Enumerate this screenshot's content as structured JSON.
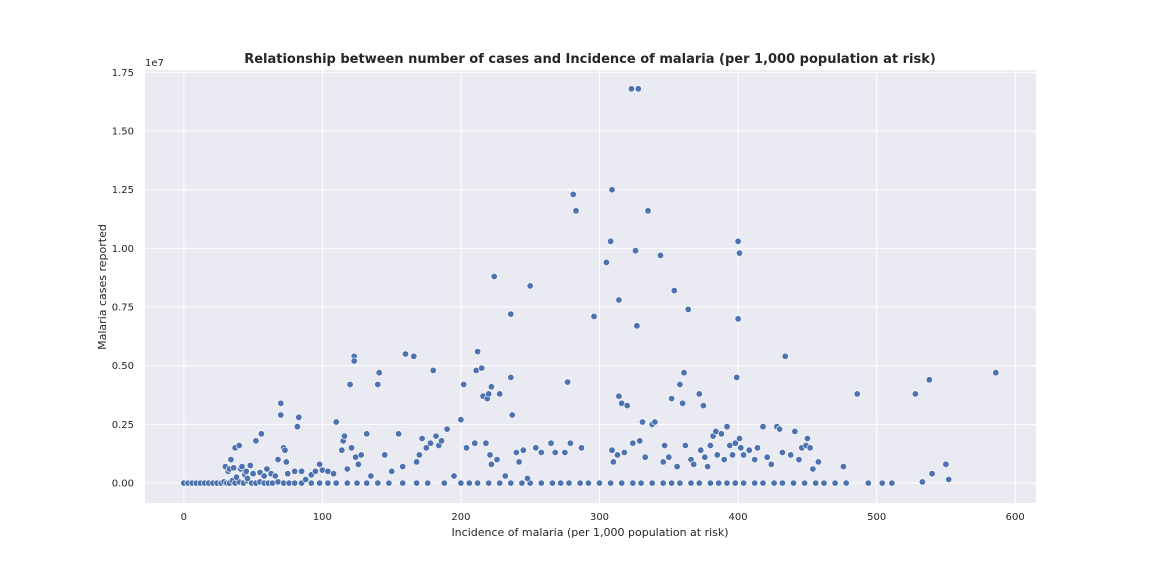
{
  "chart_data": {
    "type": "scatter",
    "title": "Relationship between number of cases and Incidence of malaria (per 1,000 population at risk)",
    "xlabel": "Incidence of malaria (per 1,000 population at risk)",
    "ylabel": "Malaria cases reported",
    "y_offset_text": "1e7",
    "xlim": [
      -28,
      615
    ],
    "ylim": [
      -850000,
      17600000
    ],
    "xticks": [
      0,
      100,
      200,
      300,
      400,
      500,
      600
    ],
    "xtick_labels": [
      "0",
      "100",
      "200",
      "300",
      "400",
      "500",
      "600"
    ],
    "yticks": [
      0,
      2500000,
      5000000,
      7500000,
      10000000,
      12500000,
      15000000,
      17500000
    ],
    "ytick_labels": [
      "0.00",
      "0.25",
      "0.50",
      "0.75",
      "1.00",
      "1.25",
      "1.50",
      "1.75"
    ],
    "grid": true,
    "style": "seaborn-darkgrid",
    "colors": {
      "background": "#eaeaf2",
      "grid": "#ffffff",
      "point": "#4c72b0",
      "point_edge": "#ffffff"
    },
    "points": [
      [
        0,
        0
      ],
      [
        3,
        0
      ],
      [
        6,
        0
      ],
      [
        9,
        0
      ],
      [
        12,
        0
      ],
      [
        15,
        0
      ],
      [
        18,
        0
      ],
      [
        21,
        0
      ],
      [
        24,
        0
      ],
      [
        27,
        0
      ],
      [
        29,
        50000
      ],
      [
        31,
        0
      ],
      [
        33,
        0
      ],
      [
        35,
        100000
      ],
      [
        37,
        0
      ],
      [
        40,
        50000
      ],
      [
        43,
        0
      ],
      [
        46,
        100000
      ],
      [
        49,
        0
      ],
      [
        52,
        0
      ],
      [
        55,
        50000
      ],
      [
        58,
        0
      ],
      [
        61,
        0
      ],
      [
        64,
        0
      ],
      [
        68,
        50000
      ],
      [
        72,
        0
      ],
      [
        76,
        0
      ],
      [
        80,
        0
      ],
      [
        85,
        0
      ],
      [
        92,
        0
      ],
      [
        98,
        0
      ],
      [
        104,
        0
      ],
      [
        110,
        0
      ],
      [
        118,
        0
      ],
      [
        125,
        0
      ],
      [
        132,
        0
      ],
      [
        140,
        0
      ],
      [
        148,
        0
      ],
      [
        158,
        0
      ],
      [
        168,
        0
      ],
      [
        176,
        0
      ],
      [
        188,
        0
      ],
      [
        200,
        0
      ],
      [
        206,
        0
      ],
      [
        212,
        0
      ],
      [
        220,
        0
      ],
      [
        228,
        0
      ],
      [
        236,
        0
      ],
      [
        244,
        0
      ],
      [
        250,
        0
      ],
      [
        258,
        0
      ],
      [
        266,
        0
      ],
      [
        272,
        0
      ],
      [
        278,
        0
      ],
      [
        286,
        0
      ],
      [
        292,
        0
      ],
      [
        300,
        0
      ],
      [
        308,
        0
      ],
      [
        316,
        0
      ],
      [
        324,
        0
      ],
      [
        330,
        0
      ],
      [
        338,
        0
      ],
      [
        346,
        0
      ],
      [
        352,
        0
      ],
      [
        358,
        0
      ],
      [
        366,
        0
      ],
      [
        372,
        0
      ],
      [
        380,
        0
      ],
      [
        386,
        0
      ],
      [
        392,
        0
      ],
      [
        398,
        0
      ],
      [
        404,
        0
      ],
      [
        412,
        0
      ],
      [
        418,
        0
      ],
      [
        426,
        0
      ],
      [
        432,
        0
      ],
      [
        440,
        0
      ],
      [
        448,
        0
      ],
      [
        456,
        0
      ],
      [
        462,
        0
      ],
      [
        470,
        0
      ],
      [
        478,
        0
      ],
      [
        494,
        0
      ],
      [
        504,
        0
      ],
      [
        511,
        0
      ],
      [
        533,
        50000
      ],
      [
        552,
        150000
      ],
      [
        30,
        700000
      ],
      [
        32,
        500000
      ],
      [
        33,
        600000
      ],
      [
        34,
        1000000
      ],
      [
        36,
        650000
      ],
      [
        37,
        1500000
      ],
      [
        38,
        250000
      ],
      [
        40,
        1600000
      ],
      [
        41,
        600000
      ],
      [
        42,
        700000
      ],
      [
        44,
        350000
      ],
      [
        45,
        500000
      ],
      [
        46,
        200000
      ],
      [
        48,
        750000
      ],
      [
        50,
        400000
      ],
      [
        52,
        1800000
      ],
      [
        55,
        450000
      ],
      [
        56,
        2100000
      ],
      [
        58,
        300000
      ],
      [
        60,
        600000
      ],
      [
        63,
        400000
      ],
      [
        66,
        300000
      ],
      [
        68,
        1000000
      ],
      [
        70,
        3400000
      ],
      [
        70,
        2900000
      ],
      [
        72,
        1500000
      ],
      [
        73,
        1400000
      ],
      [
        74,
        900000
      ],
      [
        75,
        400000
      ],
      [
        80,
        500000
      ],
      [
        82,
        2400000
      ],
      [
        83,
        2800000
      ],
      [
        85,
        500000
      ],
      [
        88,
        150000
      ],
      [
        92,
        350000
      ],
      [
        95,
        500000
      ],
      [
        98,
        800000
      ],
      [
        100,
        550000
      ],
      [
        104,
        500000
      ],
      [
        108,
        400000
      ],
      [
        110,
        2600000
      ],
      [
        114,
        1400000
      ],
      [
        115,
        1800000
      ],
      [
        116,
        2000000
      ],
      [
        118,
        600000
      ],
      [
        120,
        4200000
      ],
      [
        121,
        1500000
      ],
      [
        123,
        5400000
      ],
      [
        123,
        5200000
      ],
      [
        124,
        1100000
      ],
      [
        126,
        800000
      ],
      [
        128,
        1200000
      ],
      [
        132,
        2100000
      ],
      [
        135,
        300000
      ],
      [
        140,
        4200000
      ],
      [
        141,
        4700000
      ],
      [
        145,
        1200000
      ],
      [
        150,
        500000
      ],
      [
        155,
        2100000
      ],
      [
        158,
        700000
      ],
      [
        160,
        5500000
      ],
      [
        166,
        5400000
      ],
      [
        168,
        900000
      ],
      [
        170,
        1200000
      ],
      [
        172,
        1900000
      ],
      [
        175,
        1500000
      ],
      [
        178,
        1700000
      ],
      [
        180,
        4800000
      ],
      [
        182,
        2000000
      ],
      [
        184,
        1600000
      ],
      [
        186,
        1800000
      ],
      [
        190,
        2300000
      ],
      [
        195,
        300000
      ],
      [
        200,
        2700000
      ],
      [
        202,
        4200000
      ],
      [
        204,
        1500000
      ],
      [
        210,
        1700000
      ],
      [
        211,
        4800000
      ],
      [
        212,
        5600000
      ],
      [
        215,
        4900000
      ],
      [
        216,
        3700000
      ],
      [
        218,
        1700000
      ],
      [
        219,
        3600000
      ],
      [
        220,
        3800000
      ],
      [
        221,
        1200000
      ],
      [
        222,
        800000
      ],
      [
        222,
        4100000
      ],
      [
        224,
        8800000
      ],
      [
        226,
        1000000
      ],
      [
        228,
        3800000
      ],
      [
        232,
        300000
      ],
      [
        236,
        7200000
      ],
      [
        236,
        4500000
      ],
      [
        237,
        2900000
      ],
      [
        240,
        1300000
      ],
      [
        242,
        900000
      ],
      [
        245,
        1400000
      ],
      [
        248,
        200000
      ],
      [
        250,
        8400000
      ],
      [
        254,
        1500000
      ],
      [
        258,
        1300000
      ],
      [
        265,
        1700000
      ],
      [
        268,
        1300000
      ],
      [
        275,
        1300000
      ],
      [
        277,
        4300000
      ],
      [
        279,
        1700000
      ],
      [
        281,
        12300000
      ],
      [
        283,
        11600000
      ],
      [
        287,
        1500000
      ],
      [
        296,
        7100000
      ],
      [
        305,
        9400000
      ],
      [
        308,
        10300000
      ],
      [
        309,
        1400000
      ],
      [
        309,
        12500000
      ],
      [
        310,
        900000
      ],
      [
        313,
        1200000
      ],
      [
        314,
        7800000
      ],
      [
        314,
        3700000
      ],
      [
        316,
        3400000
      ],
      [
        318,
        1300000
      ],
      [
        320,
        3300000
      ],
      [
        323,
        16800000
      ],
      [
        324,
        1700000
      ],
      [
        326,
        9900000
      ],
      [
        327,
        6700000
      ],
      [
        328,
        16800000
      ],
      [
        329,
        1800000
      ],
      [
        331,
        2600000
      ],
      [
        333,
        1100000
      ],
      [
        335,
        11600000
      ],
      [
        338,
        2500000
      ],
      [
        340,
        2600000
      ],
      [
        344,
        9700000
      ],
      [
        346,
        900000
      ],
      [
        347,
        1600000
      ],
      [
        350,
        1100000
      ],
      [
        352,
        3600000
      ],
      [
        354,
        8200000
      ],
      [
        356,
        700000
      ],
      [
        358,
        4200000
      ],
      [
        360,
        3400000
      ],
      [
        361,
        4700000
      ],
      [
        362,
        1600000
      ],
      [
        364,
        7400000
      ],
      [
        366,
        1000000
      ],
      [
        368,
        800000
      ],
      [
        372,
        3800000
      ],
      [
        373,
        1400000
      ],
      [
        375,
        3300000
      ],
      [
        376,
        1100000
      ],
      [
        378,
        700000
      ],
      [
        380,
        1600000
      ],
      [
        382,
        2000000
      ],
      [
        384,
        2200000
      ],
      [
        385,
        1200000
      ],
      [
        388,
        2100000
      ],
      [
        390,
        1000000
      ],
      [
        392,
        2400000
      ],
      [
        394,
        1600000
      ],
      [
        396,
        1200000
      ],
      [
        398,
        1700000
      ],
      [
        399,
        4500000
      ],
      [
        400,
        10300000
      ],
      [
        400,
        7000000
      ],
      [
        401,
        9800000
      ],
      [
        401,
        1900000
      ],
      [
        402,
        1500000
      ],
      [
        404,
        1200000
      ],
      [
        408,
        1400000
      ],
      [
        412,
        1000000
      ],
      [
        414,
        1500000
      ],
      [
        418,
        2400000
      ],
      [
        421,
        1100000
      ],
      [
        424,
        800000
      ],
      [
        428,
        2400000
      ],
      [
        430,
        2300000
      ],
      [
        432,
        1300000
      ],
      [
        434,
        5400000
      ],
      [
        438,
        1200000
      ],
      [
        441,
        2200000
      ],
      [
        444,
        1000000
      ],
      [
        446,
        1500000
      ],
      [
        449,
        1600000
      ],
      [
        450,
        1900000
      ],
      [
        452,
        1500000
      ],
      [
        454,
        600000
      ],
      [
        458,
        900000
      ],
      [
        476,
        700000
      ],
      [
        486,
        3800000
      ],
      [
        528,
        3800000
      ],
      [
        538,
        4400000
      ],
      [
        540,
        400000
      ],
      [
        550,
        800000
      ],
      [
        586,
        4700000
      ]
    ]
  }
}
